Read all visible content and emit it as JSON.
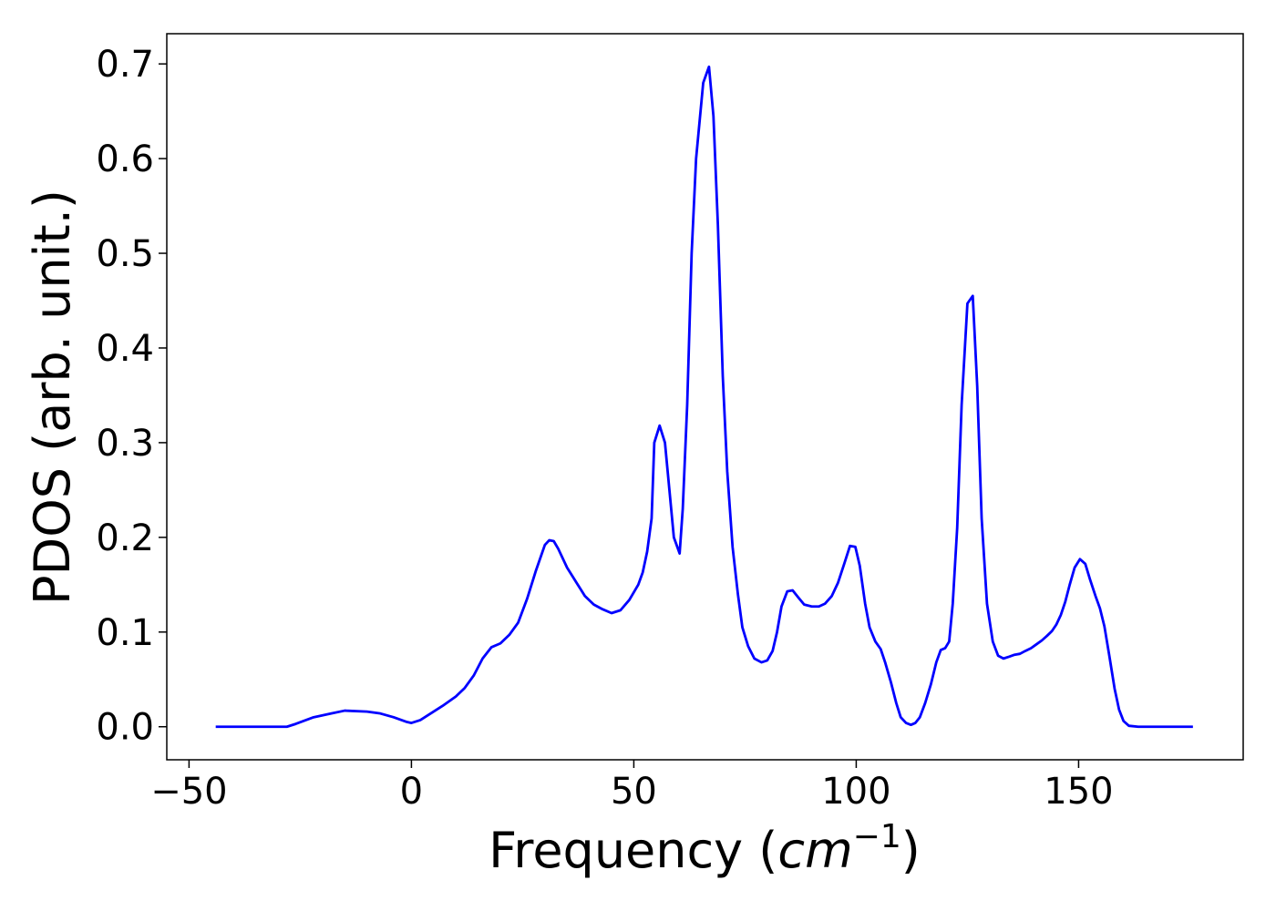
{
  "chart_data": {
    "type": "line",
    "ylabel": "PDOS (arb. unit.)",
    "xlabel": {
      "text": "Frequency (",
      "unit": "cm",
      "exponent": "−1",
      "close": ")"
    },
    "xlim": [
      -55,
      187
    ],
    "ylim": [
      -0.0349,
      0.7319
    ],
    "xticks": [
      {
        "value": -50,
        "label": "−50"
      },
      0,
      50,
      100,
      150
    ],
    "yticks": [
      {
        "value": 0,
        "label": "0.0"
      },
      0.1,
      0.2,
      0.3,
      0.4,
      0.5,
      0.6,
      0.7
    ],
    "grid": false,
    "series": [
      {
        "color": "#0000ff",
        "x": [
          -44,
          -28,
          -26,
          -22,
          -18,
          -15,
          -10,
          -7,
          -4,
          -1,
          0,
          2,
          4,
          7,
          10,
          12,
          14,
          16,
          18,
          20,
          22,
          24,
          26,
          28,
          30,
          31,
          32,
          33,
          35,
          37,
          39,
          41,
          43,
          45,
          47,
          49,
          51,
          52,
          53,
          54,
          54.6,
          55.8,
          57,
          58,
          59,
          60.3,
          61,
          62,
          63,
          64,
          65.6,
          66.9,
          67.9,
          68.9,
          70,
          71,
          72.2,
          73.4,
          74.4,
          75.7,
          77.1,
          78.7,
          80,
          81.2,
          82.2,
          83.2,
          84.5,
          85.7,
          86.9,
          88.3,
          90,
          91.6,
          93,
          94.5,
          95.9,
          97.3,
          98.6,
          99.8,
          100.8,
          102,
          103,
          104.3,
          105.5,
          106.5,
          107.8,
          109,
          110,
          111.2,
          112.3,
          113.3,
          114.3,
          115.5,
          116.8,
          118,
          119,
          120,
          120.9,
          121.7,
          122.7,
          123.7,
          125,
          126.2,
          127.2,
          128.2,
          129.4,
          130.7,
          131.9,
          133.1,
          134.4,
          135.6,
          136.8,
          138,
          139.3,
          140.5,
          141.7,
          142.9,
          144,
          145,
          146,
          147,
          148,
          149.1,
          150.3,
          151.5,
          152.6,
          153.8,
          154.8,
          155.8,
          156.9,
          158.1,
          159.1,
          160.1,
          161.3,
          163.4,
          175.7
        ],
        "values": [
          0,
          0,
          0.003,
          0.01,
          0.014,
          0.017,
          0.016,
          0.014,
          0.01,
          0.005,
          0.004,
          0.007,
          0.013,
          0.022,
          0.032,
          0.041,
          0.054,
          0.072,
          0.084,
          0.088,
          0.097,
          0.11,
          0.135,
          0.165,
          0.192,
          0.197,
          0.196,
          0.188,
          0.168,
          0.153,
          0.138,
          0.129,
          0.124,
          0.12,
          0.123,
          0.134,
          0.15,
          0.163,
          0.185,
          0.22,
          0.3,
          0.318,
          0.3,
          0.25,
          0.2,
          0.183,
          0.23,
          0.34,
          0.5,
          0.6,
          0.68,
          0.697,
          0.645,
          0.53,
          0.37,
          0.27,
          0.19,
          0.14,
          0.105,
          0.085,
          0.072,
          0.068,
          0.07,
          0.08,
          0.1,
          0.127,
          0.143,
          0.144,
          0.137,
          0.129,
          0.127,
          0.127,
          0.13,
          0.138,
          0.152,
          0.172,
          0.191,
          0.19,
          0.17,
          0.13,
          0.105,
          0.09,
          0.082,
          0.068,
          0.047,
          0.025,
          0.01,
          0.004,
          0.002,
          0.004,
          0.01,
          0.025,
          0.045,
          0.068,
          0.081,
          0.083,
          0.09,
          0.13,
          0.21,
          0.34,
          0.447,
          0.455,
          0.36,
          0.22,
          0.13,
          0.09,
          0.075,
          0.072,
          0.074,
          0.076,
          0.077,
          0.08,
          0.083,
          0.087,
          0.091,
          0.096,
          0.101,
          0.108,
          0.118,
          0.132,
          0.15,
          0.168,
          0.177,
          0.172,
          0.155,
          0.138,
          0.125,
          0.106,
          0.075,
          0.04,
          0.018,
          0.006,
          0.001,
          0,
          0
        ]
      }
    ]
  }
}
